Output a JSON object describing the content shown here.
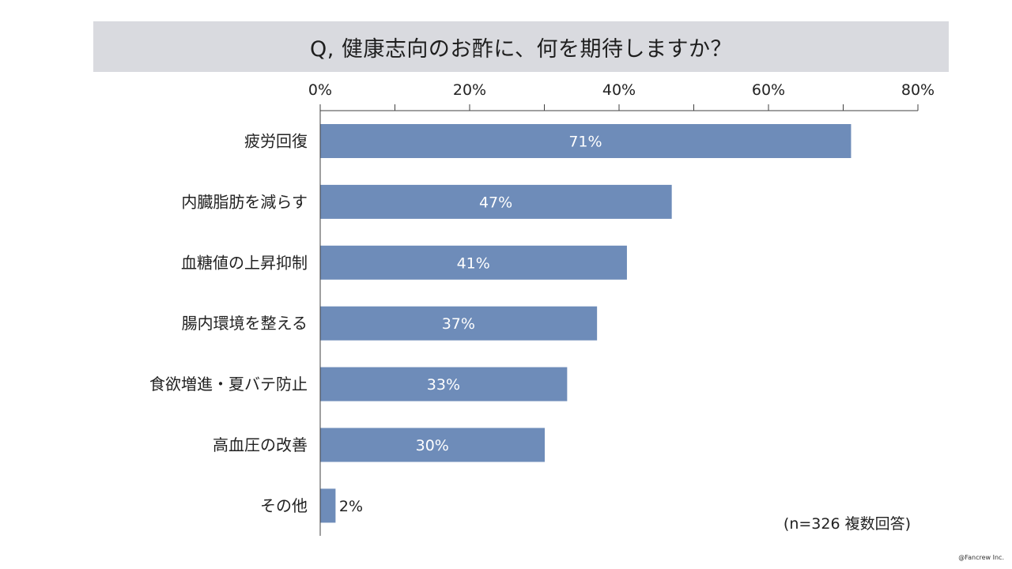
{
  "title": "Q, 健康志向のお酢に、何を期待しますか？",
  "note": "(n=326 複数回答)",
  "copyright": "@Fancrew Inc.",
  "colors": {
    "bar": "#6e8cb9",
    "title_bg": "#d9dadf",
    "axis": "#404040"
  },
  "chart_data": {
    "type": "bar",
    "orientation": "horizontal",
    "title": "Q, 健康志向のお酢に、何を期待しますか？",
    "categories": [
      "疲労回復",
      "内臓脂肪を減らす",
      "血糖値の上昇抑制",
      "腸内環境を整える",
      "食欲増進・夏バテ防止",
      "高血圧の改善",
      "その他"
    ],
    "values": [
      71,
      47,
      41,
      37,
      33,
      30,
      2
    ],
    "value_labels": [
      "71%",
      "47%",
      "41%",
      "37%",
      "33%",
      "30%",
      "2%"
    ],
    "xlim": [
      0,
      80
    ],
    "x_ticks": [
      0,
      20,
      40,
      60,
      80
    ],
    "x_tick_labels": [
      "0%",
      "20%",
      "40%",
      "60%",
      "80%"
    ],
    "x_minor_ticks": [
      10,
      30,
      50,
      70
    ],
    "x_axis_position": "top",
    "grid": false,
    "legend": "none"
  }
}
